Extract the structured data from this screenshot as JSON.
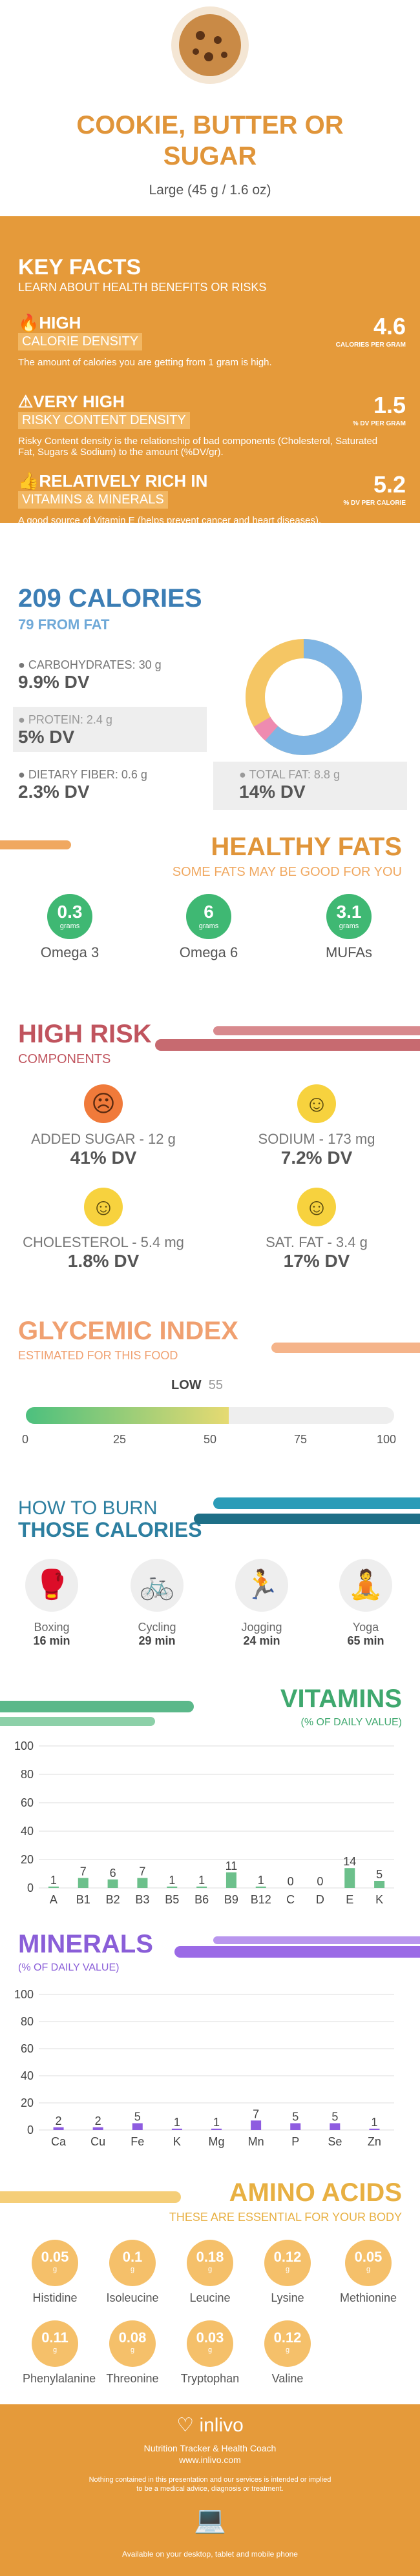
{
  "header": {
    "title": "COOKIE, BUTTER OR SUGAR",
    "serving": "Large (45 g / 1.6 oz)"
  },
  "key_facts": {
    "title": "KEY FACTS",
    "subtitle": "LEARN ABOUT HEALTH BENEFITS OR RISKS",
    "items": [
      {
        "level": "HIGH",
        "category": "CALORIE DENSITY",
        "value": "4.6",
        "unit": "CALORIES PER GRAM",
        "desc": "The amount of calories you are getting from 1 gram is high."
      },
      {
        "level": "VERY HIGH",
        "category": "RISKY CONTENT DENSITY",
        "value": "1.5",
        "unit": "% DV PER GRAM",
        "desc": "Risky Content density is the relationship of bad components (Cholesterol, Saturated Fat, Sugars & Sodium) to the amount (%DV/gr)."
      },
      {
        "level": "RELATIVELY RICH  IN",
        "category": "VITAMINS & MINERALS",
        "value": "5.2",
        "unit": "% DV PER CALORIE",
        "desc": "A good source of Vitamin E (helps prevent cancer and heart diseases)."
      }
    ]
  },
  "calories": {
    "title": "209 CALORIES",
    "from_fat": "79 FROM FAT",
    "carbs": {
      "label": "CARBOHYDRATES: 30 g",
      "dv": "9.9% DV",
      "color": "#7FB5E4"
    },
    "protein": {
      "label": "PROTEIN: 2.4 g",
      "dv": "5% DV",
      "color": "#EE8BB0"
    },
    "fiber": {
      "label": "DIETARY FIBER: 0.6 g",
      "dv": "2.3% DV",
      "color": "#3FB873"
    },
    "fat": {
      "label": "TOTAL FAT: 8.8 g",
      "dv": "14% DV",
      "color": "#F5C664"
    }
  },
  "healthy_fats": {
    "title": "HEALTHY FATS",
    "subtitle": "SOME FATS MAY BE GOOD FOR YOU",
    "items": [
      {
        "value": "0.3",
        "unit": "grams",
        "name": "Omega 3"
      },
      {
        "value": "6",
        "unit": "grams",
        "name": "Omega 6"
      },
      {
        "value": "3.1",
        "unit": "grams",
        "name": "MUFAs"
      }
    ]
  },
  "high_risk": {
    "title": "HIGH RISK",
    "subtitle": "COMPONENTS",
    "items": [
      {
        "label": "ADDED SUGAR - 12 g",
        "dv": "41% DV",
        "mood": "sad"
      },
      {
        "label": "SODIUM - 173 mg",
        "dv": "7.2% DV",
        "mood": "happy"
      },
      {
        "label": "CHOLESTEROL - 5.4 mg",
        "dv": "1.8% DV",
        "mood": "happy"
      },
      {
        "label": "SAT. FAT - 3.4 g",
        "dv": "17% DV",
        "mood": "happy"
      }
    ]
  },
  "glycemic": {
    "title": "GLYCEMIC INDEX",
    "subtitle": "ESTIMATED FOR THIS FOOD",
    "level": "LOW",
    "value": "55",
    "value_num": 55,
    "ticks": [
      "0",
      "25",
      "50",
      "75",
      "100"
    ]
  },
  "burn": {
    "title1": "HOW TO BURN",
    "title2": "THOSE CALORIES",
    "items": [
      {
        "name": "Boxing",
        "time": "16 min"
      },
      {
        "name": "Cycling",
        "time": "29 min"
      },
      {
        "name": "Jogging",
        "time": "24 min"
      },
      {
        "name": "Yoga",
        "time": "65 min"
      }
    ]
  },
  "vitamins": {
    "title": "VITAMINS",
    "subtitle": "(% OF DAILY VALUE)"
  },
  "minerals": {
    "title": "MINERALS",
    "subtitle": "(% OF DAILY VALUE)"
  },
  "chart_data": [
    {
      "type": "bar",
      "categories": [
        "A",
        "B1",
        "B2",
        "B3",
        "B5",
        "B6",
        "B9",
        "B12",
        "C",
        "D",
        "E",
        "K"
      ],
      "values": [
        1,
        7,
        6,
        7,
        1,
        1,
        11,
        1,
        0,
        0,
        14,
        5
      ],
      "labels": [
        "1",
        "7",
        "6",
        "7",
        "1",
        "1",
        "11",
        "1",
        "0",
        "0",
        "14",
        "5"
      ],
      "ylim": [
        0,
        100
      ],
      "yticks": [
        "0",
        "20",
        "40",
        "60",
        "80",
        "100"
      ],
      "color": "#6CC08B"
    },
    {
      "type": "bar",
      "categories": [
        "Ca",
        "Cu",
        "Fe",
        "K",
        "Mg",
        "Mn",
        "P",
        "Se",
        "Zn"
      ],
      "values": [
        2,
        2,
        5,
        1,
        1,
        7,
        5,
        5,
        1
      ],
      "labels": [
        "2",
        "2",
        "5",
        "1",
        "1",
        "7",
        "5",
        "5",
        "1"
      ],
      "ylim": [
        0,
        100
      ],
      "yticks": [
        "0",
        "20",
        "40",
        "60",
        "80",
        "100"
      ],
      "color": "#8E5CE0"
    }
  ],
  "amino": {
    "title": "AMINO ACIDS",
    "subtitle": "THESE ARE ESSENTIAL FOR YOUR BODY",
    "items": [
      {
        "value": "0.05",
        "unit": "g",
        "name": "Histidine"
      },
      {
        "value": "0.1",
        "unit": "g",
        "name": "Isoleucine"
      },
      {
        "value": "0.18",
        "unit": "g",
        "name": "Leucine"
      },
      {
        "value": "0.12",
        "unit": "g",
        "name": "Lysine"
      },
      {
        "value": "0.05",
        "unit": "g",
        "name": "Methionine"
      },
      {
        "value": "0.11",
        "unit": "g",
        "name": "Phenylalanine"
      },
      {
        "value": "0.08",
        "unit": "g",
        "name": "Threonine"
      },
      {
        "value": "0.03",
        "unit": "g",
        "name": "Tryptophan"
      },
      {
        "value": "0.12",
        "unit": "g",
        "name": "Valine"
      }
    ]
  },
  "footer": {
    "brand": "inlivo",
    "tagline": "Nutrition Tracker & Health Coach",
    "url": "www.inlivo.com",
    "disclaimer": "Nothing contained in this presentation and our services is intended or implied to be a medical advice, diagnosis or treatment.",
    "available": "Available on your desktop, tablet and mobile phone"
  }
}
